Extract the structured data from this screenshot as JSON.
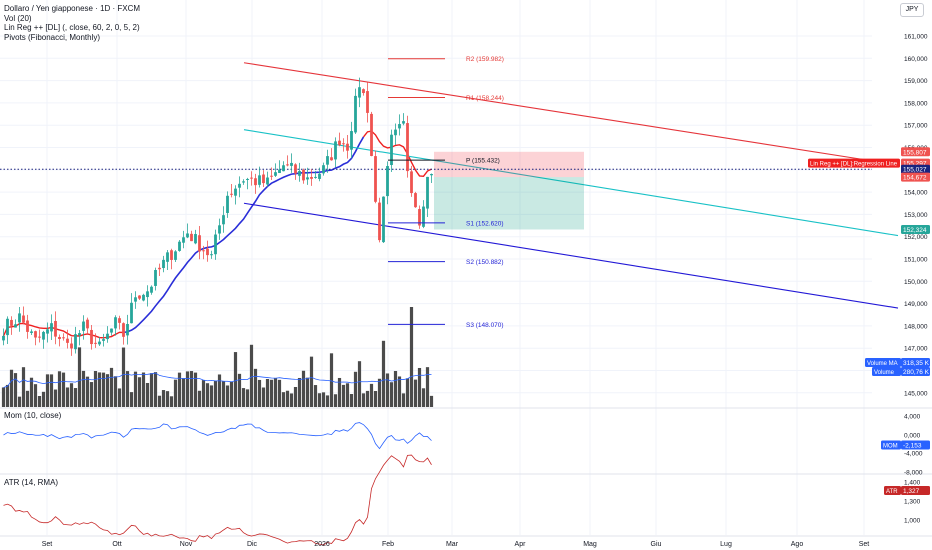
{
  "header": {
    "symbol_title": "Dollaro / Yen giapponese · 1D · FXCM",
    "indicators": [
      "Vol (20)",
      "Lin Reg ++ [DL] (, close, 60, 2, 0, 5, 2)",
      "Pivots (Fibonacci, Monthly)"
    ],
    "currency_button": "JPY"
  },
  "panes": {
    "momentum_title": "Mom (10, close)",
    "atr_title": "ATR (14, RMA)"
  },
  "colors": {
    "up": "#26a69a",
    "down": "#ef5350",
    "volume": "#4b4b4b",
    "volume_ma": "#2962ff",
    "sma_up": "#2a2ed8",
    "sma_down": "#ef2020",
    "reg_upper": "#e5343a",
    "reg_mid": "#18c1c6",
    "reg_lower": "#2218d6",
    "pivot_line": "#e53935",
    "pivot_s": "#2323d6",
    "atr": "#c62828",
    "mom": "#2962ff"
  },
  "chart_data": {
    "type": "candlestick",
    "x_tick_labels": [
      "Set",
      "Ott",
      "Nov",
      "Dic",
      "2026",
      "Feb",
      "Mar",
      "Apr",
      "Mag",
      "Giu",
      "Lug",
      "Ago",
      "Set"
    ],
    "price_axis": {
      "range": [
        144.3,
        161.8
      ],
      "tick_labels": [
        "161,000",
        "160,000",
        "159,000",
        "158,000",
        "157,000",
        "156,000",
        "155,000",
        "154,000",
        "153,000",
        "152,000",
        "151,000",
        "150,000",
        "149,000",
        "148,000",
        "147,000",
        "146,000",
        "145,000"
      ],
      "price_tags": [
        {
          "label": "155,807",
          "value": 155.807,
          "color": "#ef5350"
        },
        {
          "label": "155,297",
          "value": 155.297,
          "color": "#ef5350"
        },
        {
          "label": "155,027",
          "value": 155.027,
          "color": "#1a237e"
        },
        {
          "label": "154,672",
          "value": 154.672,
          "color": "#ef5350"
        },
        {
          "label": "152,324",
          "value": 152.324,
          "color": "#26a69a"
        }
      ],
      "regression_tag": "Lin Reg ++ [DL]:Regression Line",
      "volume_ma_tag": "Volume MA",
      "volume_ma_value": "318,35 K",
      "volume_tag": "Volume",
      "volume_value": "280,76 K",
      "last_price": 155.027
    },
    "pivots": [
      {
        "label": "R2 (159.982)",
        "value": 159.982
      },
      {
        "label": "R1 (158.244)",
        "value": 158.244
      },
      {
        "label": "P (155.432)",
        "value": 155.432
      },
      {
        "label": "S1 (152.620)",
        "value": 152.62
      },
      {
        "label": "S2 (150.882)",
        "value": 150.882
      },
      {
        "label": "S3 (148.070)",
        "value": 148.07
      }
    ],
    "position_box": {
      "entry": 154.672,
      "stop": 155.807,
      "target": 152.324
    },
    "momentum_axis": {
      "tick_labels": [
        "4,000",
        "0,000",
        "-4,000",
        "-8,000"
      ],
      "tag": "MOM",
      "tag_value": "-2,153"
    },
    "atr_axis": {
      "tick_labels": [
        "1,400",
        "1,300",
        "1,200",
        "1,000"
      ],
      "tag": "ATR",
      "tag_value": "1,327"
    }
  }
}
